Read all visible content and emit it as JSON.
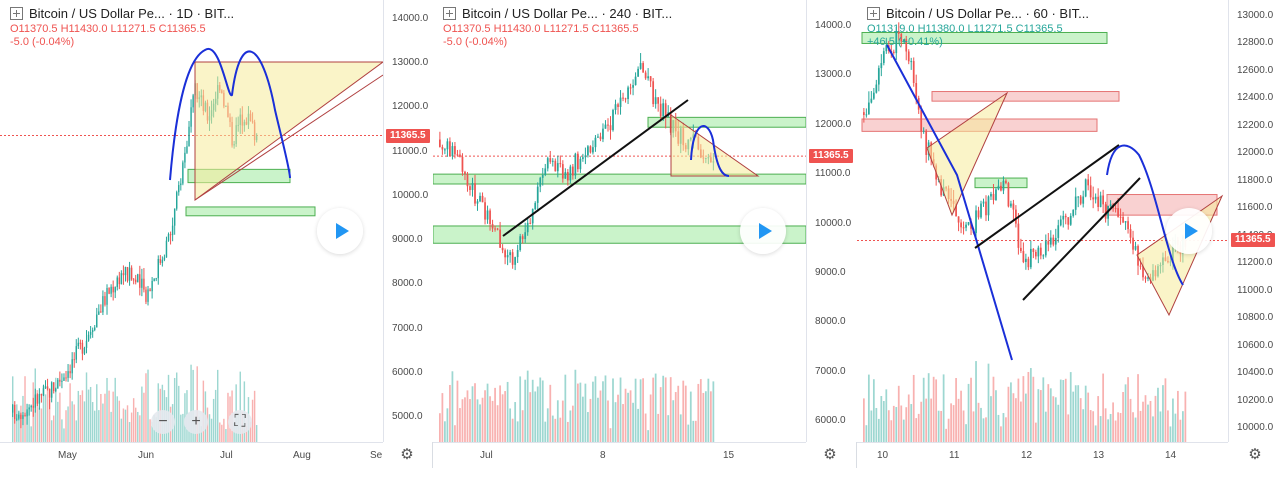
{
  "last_price": 11365.5,
  "colors": {
    "up": "#26a69a",
    "down": "#ef5350",
    "drawing_blue": "#1a2fd8",
    "zone_green": "#7be27b",
    "zone_red": "#f29a9a",
    "triangle": "#f5eb9a"
  },
  "panels": [
    {
      "title": "Bitcoin / US Dollar Pe... · 1D · BIT...",
      "ohlc": {
        "o": "O11370.5",
        "h": "H11430.0",
        "l": "L11271.5",
        "c": "C11365.5"
      },
      "change": "-5.0 (-0.04%)",
      "price_tag": "11365.5",
      "y_ticks": [
        "14000.0",
        "13000.0",
        "12000.0",
        "11000.0",
        "10000.0",
        "9000.0",
        "8000.0",
        "7000.0",
        "6000.0",
        "5000.0"
      ],
      "x_ticks": [
        "May",
        "Jun",
        "Jul",
        "Aug",
        "Se"
      ],
      "zoom_buttons": [
        "−",
        "+",
        "⛶"
      ]
    },
    {
      "title": "Bitcoin / US Dollar Pe... · 240 · BIT...",
      "ohlc": {
        "o": "O11370.5",
        "h": "H11430.0",
        "l": "L11271.5",
        "c": "C11365.5"
      },
      "change": "-5.0 (-0.04%)",
      "price_tag": "11365.5",
      "y_ticks": [
        "14000.0",
        "13000.0",
        "12000.0",
        "11000.0",
        "10000.0",
        "9000.0",
        "8000.0",
        "7000.0",
        "6000.0"
      ],
      "x_ticks": [
        "Jul",
        "8",
        "15"
      ]
    },
    {
      "title": "Bitcoin / US Dollar Pe... · 60 · BIT...",
      "ohlc": {
        "o": "O11319.0",
        "h": "H11380.0",
        "l": "L11271.5",
        "c": "C11365.5"
      },
      "change": "+46.5 (+0.41%)",
      "price_tag": "11365.5",
      "y_ticks": [
        "13000.0",
        "12800.0",
        "12600.0",
        "12400.0",
        "12200.0",
        "12000.0",
        "11800.0",
        "11600.0",
        "11400.0",
        "11200.0",
        "11000.0",
        "10800.0",
        "10600.0",
        "10400.0",
        "10200.0",
        "10000.0"
      ],
      "x_ticks": [
        "10",
        "11",
        "12",
        "13",
        "14"
      ]
    }
  ],
  "chart_data": [
    {
      "type": "candlestick",
      "symbol": "Bitcoin / US Dollar",
      "interval": "1D",
      "ylim": [
        4500,
        14500
      ],
      "x_labels": [
        "May",
        "Jun",
        "Jul",
        "Aug",
        "Se"
      ],
      "close_path": [
        5100,
        5200,
        5400,
        5600,
        5900,
        6300,
        6800,
        7400,
        7900,
        8300,
        8100,
        7800,
        8500,
        9200,
        10800,
        12400,
        11800,
        12600,
        11300,
        11900,
        11365.5
      ],
      "zones": [
        [
          10300,
          10600
        ],
        [
          9550,
          9750
        ]
      ],
      "triangle": [
        [
          13000,
          10000
        ],
        [
          13000,
          13000
        ],
        [
          10000,
          10000
        ]
      ]
    },
    {
      "type": "candlestick",
      "symbol": "Bitcoin / US Dollar",
      "interval": "240",
      "ylim": [
        5500,
        14600
      ],
      "x_labels": [
        "Jul",
        "8",
        "15"
      ],
      "close_path": [
        11700,
        11400,
        10500,
        9900,
        9200,
        10200,
        11300,
        11000,
        11500,
        11800,
        12500,
        13100,
        12400,
        11800,
        11600,
        11365.5
      ],
      "zones": [
        [
          11950,
          12150
        ],
        [
          10800,
          11000
        ],
        [
          9600,
          9950
        ]
      ]
    },
    {
      "type": "candlestick",
      "symbol": "Bitcoin / US Dollar",
      "interval": "60",
      "ylim": [
        9950,
        13050
      ],
      "x_labels": [
        "10",
        "11",
        "12",
        "13",
        "14"
      ],
      "close_path": [
        12300,
        12700,
        12900,
        12100,
        11700,
        11400,
        11600,
        11800,
        11200,
        11300,
        11500,
        11750,
        11600,
        11500,
        11100,
        11250,
        11365.5
      ],
      "zones": [
        [
          12800,
          12880
        ],
        [
          12380,
          12450
        ],
        [
          12160,
          12250
        ],
        [
          11750,
          11820
        ],
        [
          11550,
          11700
        ]
      ]
    }
  ]
}
